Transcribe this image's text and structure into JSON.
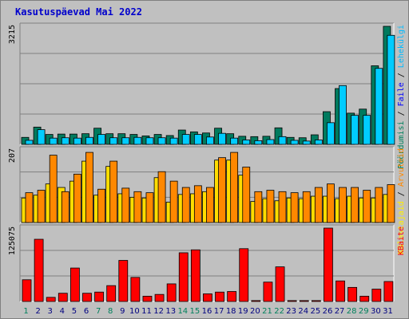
{
  "title": "Kasutuspäevad Mai 2022",
  "colors": {
    "background": "#c0c0c0",
    "plot_background": "#c0c0c0",
    "grid": "#808080",
    "title": "#0000cc",
    "visits": "#007a5e",
    "pages": "#00bbff",
    "files": "#3366ff",
    "hits": "#ff8800",
    "sites": "#ffff00",
    "kbytes": "#ff0000",
    "weekend_label": "#00805c",
    "weekday_label": "#000080"
  },
  "chart_data": [
    {
      "type": "bar",
      "panel": "top",
      "ymax_label": "3215",
      "ymax": 3215,
      "legend_text": [
        {
          "text": "Pöördumisi",
          "color": "#00805c"
        },
        {
          "text": " / ",
          "color": "#000000"
        },
        {
          "text": "Faile",
          "color": "#0000ff"
        },
        {
          "text": " / ",
          "color": "#000000"
        },
        {
          "text": "Lehekülgi",
          "color": "#00bbff"
        }
      ],
      "categories": [
        "1",
        "2",
        "3",
        "4",
        "5",
        "6",
        "7",
        "8",
        "9",
        "10",
        "11",
        "12",
        "13",
        "14",
        "15",
        "16",
        "17",
        "18",
        "19",
        "20",
        "21",
        "22",
        "23",
        "24",
        "25",
        "26",
        "27",
        "28",
        "29",
        "30",
        "31"
      ],
      "series": [
        {
          "name": "Pöördumisi",
          "color": "#007a5e",
          "values": [
            190,
            470,
            270,
            280,
            280,
            290,
            440,
            290,
            290,
            270,
            230,
            270,
            240,
            390,
            340,
            310,
            440,
            290,
            220,
            210,
            220,
            450,
            190,
            180,
            260,
            890,
            1520,
            850,
            960,
            2140,
            3215
          ]
        },
        {
          "name": "Lehekülgi",
          "color": "#00ccff",
          "values": [
            110,
            400,
            170,
            180,
            170,
            190,
            270,
            180,
            180,
            190,
            180,
            180,
            170,
            270,
            270,
            200,
            300,
            170,
            120,
            100,
            130,
            210,
            110,
            90,
            120,
            590,
            1600,
            790,
            790,
            2070,
            2970
          ]
        }
      ]
    },
    {
      "type": "bar",
      "panel": "middle",
      "ymax_label": "207",
      "ymax": 207,
      "legend_text": [
        {
          "text": "Külastajaid",
          "color": "#ffee00"
        },
        {
          "text": " / ",
          "color": "#000000"
        },
        {
          "text": "Arvuteid",
          "color": "#ff8800"
        }
      ],
      "categories": [
        "1",
        "2",
        "3",
        "4",
        "5",
        "6",
        "7",
        "8",
        "9",
        "10",
        "11",
        "12",
        "13",
        "14",
        "15",
        "16",
        "17",
        "18",
        "19",
        "20",
        "21",
        "22",
        "23",
        "24",
        "25",
        "26",
        "27",
        "28",
        "29",
        "30",
        "31"
      ],
      "series": [
        {
          "name": "Külastajaid",
          "color": "#ffdd00",
          "values": [
            70,
            78,
            110,
            100,
            118,
            175,
            78,
            160,
            82,
            72,
            70,
            128,
            58,
            80,
            82,
            88,
            178,
            178,
            135,
            60,
            68,
            62,
            70,
            68,
            75,
            75,
            68,
            75,
            70,
            70,
            80
          ]
        },
        {
          "name": "Arvuteid",
          "color": "#ff8800",
          "values": [
            85,
            92,
            192,
            88,
            138,
            200,
            95,
            175,
            98,
            88,
            85,
            145,
            118,
            100,
            105,
            100,
            185,
            200,
            158,
            88,
            92,
            88,
            85,
            88,
            100,
            110,
            100,
            100,
            92,
            100,
            108
          ]
        }
      ]
    },
    {
      "type": "bar",
      "panel": "bottom",
      "ymax_label": "125075",
      "ymax": 125075,
      "legend_text": [
        {
          "text": "KBaite",
          "color": "#ff0000"
        }
      ],
      "categories": [
        "1",
        "2",
        "3",
        "4",
        "5",
        "6",
        "7",
        "8",
        "9",
        "10",
        "11",
        "12",
        "13",
        "14",
        "15",
        "16",
        "17",
        "18",
        "19",
        "20",
        "21",
        "22",
        "23",
        "24",
        "25",
        "26",
        "27",
        "28",
        "29",
        "30",
        "31"
      ],
      "series": [
        {
          "name": "KBaite",
          "color": "#ff0000",
          "values": [
            37000,
            106000,
            7000,
            14000,
            57000,
            14000,
            16000,
            27000,
            70000,
            41000,
            9000,
            12000,
            30000,
            83000,
            88000,
            13000,
            16000,
            17000,
            90000,
            1500,
            33000,
            59000,
            1500,
            1500,
            1500,
            125075,
            35000,
            24000,
            9000,
            21000,
            34000
          ]
        }
      ]
    }
  ],
  "weekend_days": [
    1,
    7,
    8,
    14,
    15,
    21,
    22,
    28,
    29
  ]
}
